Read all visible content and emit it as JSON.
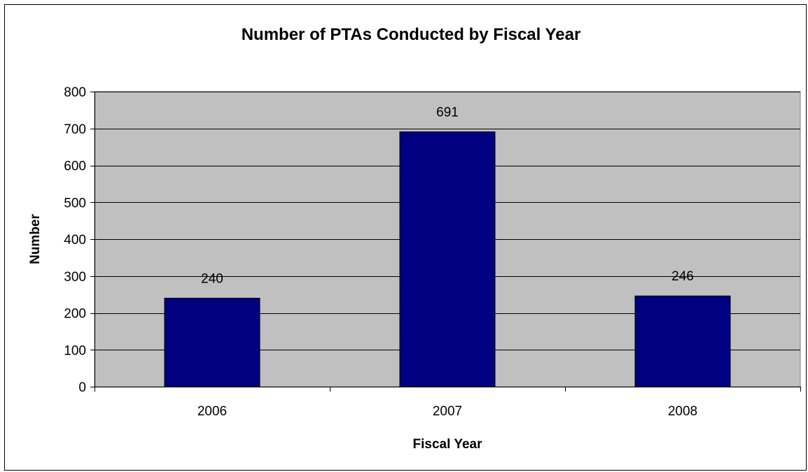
{
  "chart_data": {
    "type": "bar",
    "title": "Number of PTAs Conducted by Fiscal Year",
    "xlabel": "Fiscal Year",
    "ylabel": "Number",
    "categories": [
      "2006",
      "2007",
      "2008"
    ],
    "values": [
      240,
      691,
      246
    ],
    "data_labels": [
      "240",
      "691",
      "246"
    ],
    "ylim": [
      0,
      800
    ],
    "yticks": [
      0,
      100,
      200,
      300,
      400,
      500,
      600,
      700,
      800
    ],
    "grid": true,
    "legend": "none",
    "colors": {
      "bar": "#000080",
      "plot_background": "#C0C0C0",
      "gridline": "#000000"
    }
  }
}
